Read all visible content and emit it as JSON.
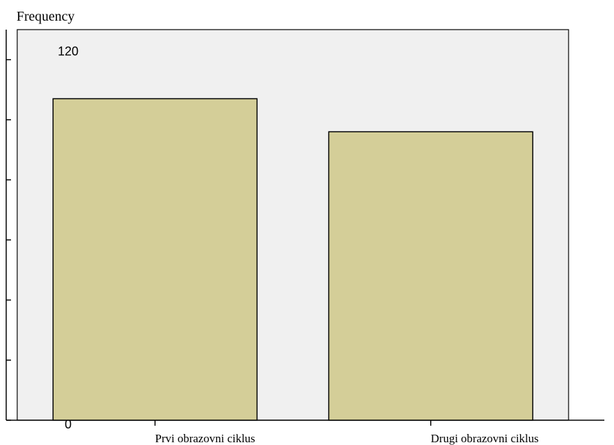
{
  "chart_data": {
    "type": "bar",
    "title": "",
    "xlabel": "",
    "ylabel": "Frequency",
    "categories": [
      "Prvi obrazovni ciklus",
      "Drugi obrazovni ciklus"
    ],
    "values": [
      107,
      96
    ],
    "ylim": [
      0,
      130
    ],
    "yticks": [
      0,
      20,
      40,
      60,
      80,
      100,
      120
    ],
    "grid": false,
    "legend": "none",
    "colors": {
      "plot_background": "#f0f0f0",
      "bar_fill": "#d4ce98",
      "bar_stroke": "#000000"
    }
  }
}
